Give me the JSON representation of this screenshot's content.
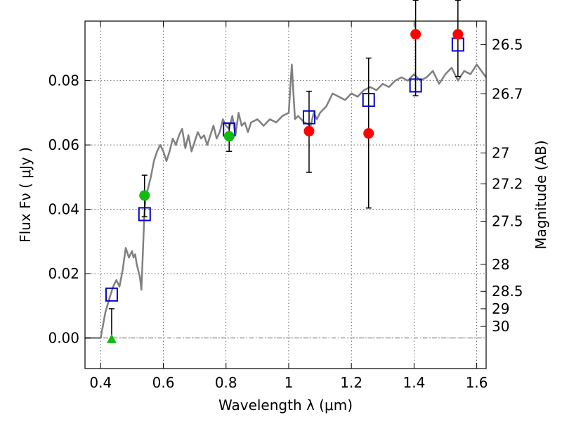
{
  "chart_data": {
    "type": "scatter",
    "title": "",
    "xlabel": "Wavelength  λ (μm)",
    "ylabel": "Flux  Fν  ( μJy )",
    "ylabel_right": "Magnitude (AB)",
    "xlim": [
      0.35,
      1.63
    ],
    "ylim": [
      -0.0095,
      0.0985
    ],
    "grid": true,
    "x_ticks": [
      {
        "value": 0.4,
        "label": "0.4"
      },
      {
        "value": 0.6,
        "label": "0.6"
      },
      {
        "value": 0.8,
        "label": "0.8"
      },
      {
        "value": 1.0,
        "label": "1"
      },
      {
        "value": 1.2,
        "label": "1.2"
      },
      {
        "value": 1.4,
        "label": "1.4"
      },
      {
        "value": 1.6,
        "label": "1.6"
      }
    ],
    "y_ticks": [
      {
        "value": 0.0,
        "label": "0.00"
      },
      {
        "value": 0.02,
        "label": "0.02"
      },
      {
        "value": 0.04,
        "label": "0.04"
      },
      {
        "value": 0.06,
        "label": "0.06"
      },
      {
        "value": 0.08,
        "label": "0.08"
      }
    ],
    "right_ticks": [
      {
        "label": "26.5",
        "flux": 0.0912
      },
      {
        "label": "26.7",
        "flux": 0.0759
      },
      {
        "label": "27",
        "flux": 0.0575
      },
      {
        "label": "27.2",
        "flux": 0.0479
      },
      {
        "label": "27.5",
        "flux": 0.0363
      },
      {
        "label": "28",
        "flux": 0.0229
      },
      {
        "label": "28.5",
        "flux": 0.0145
      },
      {
        "label": "29",
        "flux": 0.0091
      },
      {
        "label": "30",
        "flux": 0.0036
      }
    ],
    "model_sed": {
      "color": "#808080",
      "x": [
        0.35,
        0.4,
        0.415,
        0.43,
        0.44,
        0.45,
        0.46,
        0.47,
        0.48,
        0.49,
        0.5,
        0.505,
        0.51,
        0.515,
        0.52,
        0.525,
        0.53,
        0.54,
        0.545,
        0.55,
        0.56,
        0.57,
        0.58,
        0.59,
        0.6,
        0.61,
        0.62,
        0.63,
        0.64,
        0.65,
        0.66,
        0.67,
        0.68,
        0.69,
        0.7,
        0.71,
        0.72,
        0.73,
        0.74,
        0.75,
        0.76,
        0.77,
        0.78,
        0.79,
        0.8,
        0.81,
        0.82,
        0.83,
        0.84,
        0.85,
        0.86,
        0.87,
        0.88,
        0.9,
        0.92,
        0.94,
        0.96,
        0.98,
        1.0,
        1.01,
        1.015,
        1.02,
        1.03,
        1.05,
        1.07,
        1.08,
        1.09,
        1.1,
        1.12,
        1.14,
        1.16,
        1.18,
        1.2,
        1.22,
        1.24,
        1.26,
        1.28,
        1.3,
        1.32,
        1.34,
        1.36,
        1.38,
        1.4,
        1.42,
        1.44,
        1.46,
        1.48,
        1.5,
        1.52,
        1.54,
        1.56,
        1.58,
        1.6,
        1.63
      ],
      "y": [
        0.0,
        0.0,
        0.008,
        0.013,
        0.016,
        0.018,
        0.016,
        0.021,
        0.028,
        0.025,
        0.027,
        0.025,
        0.026,
        0.023,
        0.021,
        0.019,
        0.015,
        0.04,
        0.045,
        0.046,
        0.05,
        0.055,
        0.058,
        0.06,
        0.058,
        0.055,
        0.058,
        0.062,
        0.06,
        0.063,
        0.065,
        0.059,
        0.063,
        0.058,
        0.061,
        0.064,
        0.062,
        0.063,
        0.06,
        0.063,
        0.066,
        0.062,
        0.064,
        0.068,
        0.066,
        0.065,
        0.069,
        0.063,
        0.07,
        0.066,
        0.067,
        0.064,
        0.067,
        0.068,
        0.066,
        0.068,
        0.067,
        0.069,
        0.07,
        0.085,
        0.076,
        0.068,
        0.069,
        0.067,
        0.066,
        0.07,
        0.068,
        0.07,
        0.072,
        0.076,
        0.075,
        0.074,
        0.076,
        0.075,
        0.077,
        0.078,
        0.077,
        0.079,
        0.078,
        0.08,
        0.081,
        0.08,
        0.082,
        0.08,
        0.081,
        0.083,
        0.079,
        0.082,
        0.084,
        0.08,
        0.083,
        0.082,
        0.085,
        0.081
      ]
    },
    "series": [
      {
        "marker": "open-square",
        "color": "#0000cc",
        "x": [
          0.435,
          0.54,
          0.81,
          1.065,
          1.255,
          1.405,
          1.54
        ],
        "y": [
          0.0135,
          0.0385,
          0.0648,
          0.0686,
          0.074,
          0.0785,
          0.0912
        ]
      },
      {
        "marker": "filled-circle",
        "color": "#ff0000",
        "x": [
          1.065,
          1.255,
          1.405,
          1.54
        ],
        "y": [
          0.0643,
          0.0636,
          0.0944,
          0.0944
        ],
        "yerr_low": [
          0.0128,
          0.0232,
          0.0191,
          0.0131
        ],
        "yerr_high": [
          0.0124,
          0.0234,
          0.0106,
          0.0106
        ]
      },
      {
        "marker": "filled-circle",
        "color": "#11bb11",
        "x": [
          0.54,
          0.81
        ],
        "y": [
          0.0443,
          0.0627
        ],
        "yerr_low": [
          0.0066,
          0.0047
        ],
        "yerr_high": [
          0.0063,
          0.004
        ]
      },
      {
        "marker": "filled-triangle",
        "color": "#11bb11",
        "x": [
          0.435
        ],
        "y": [
          -0.0003
        ],
        "yerr_low": [
          0.0
        ],
        "yerr_high": [
          0.0094
        ]
      }
    ]
  }
}
